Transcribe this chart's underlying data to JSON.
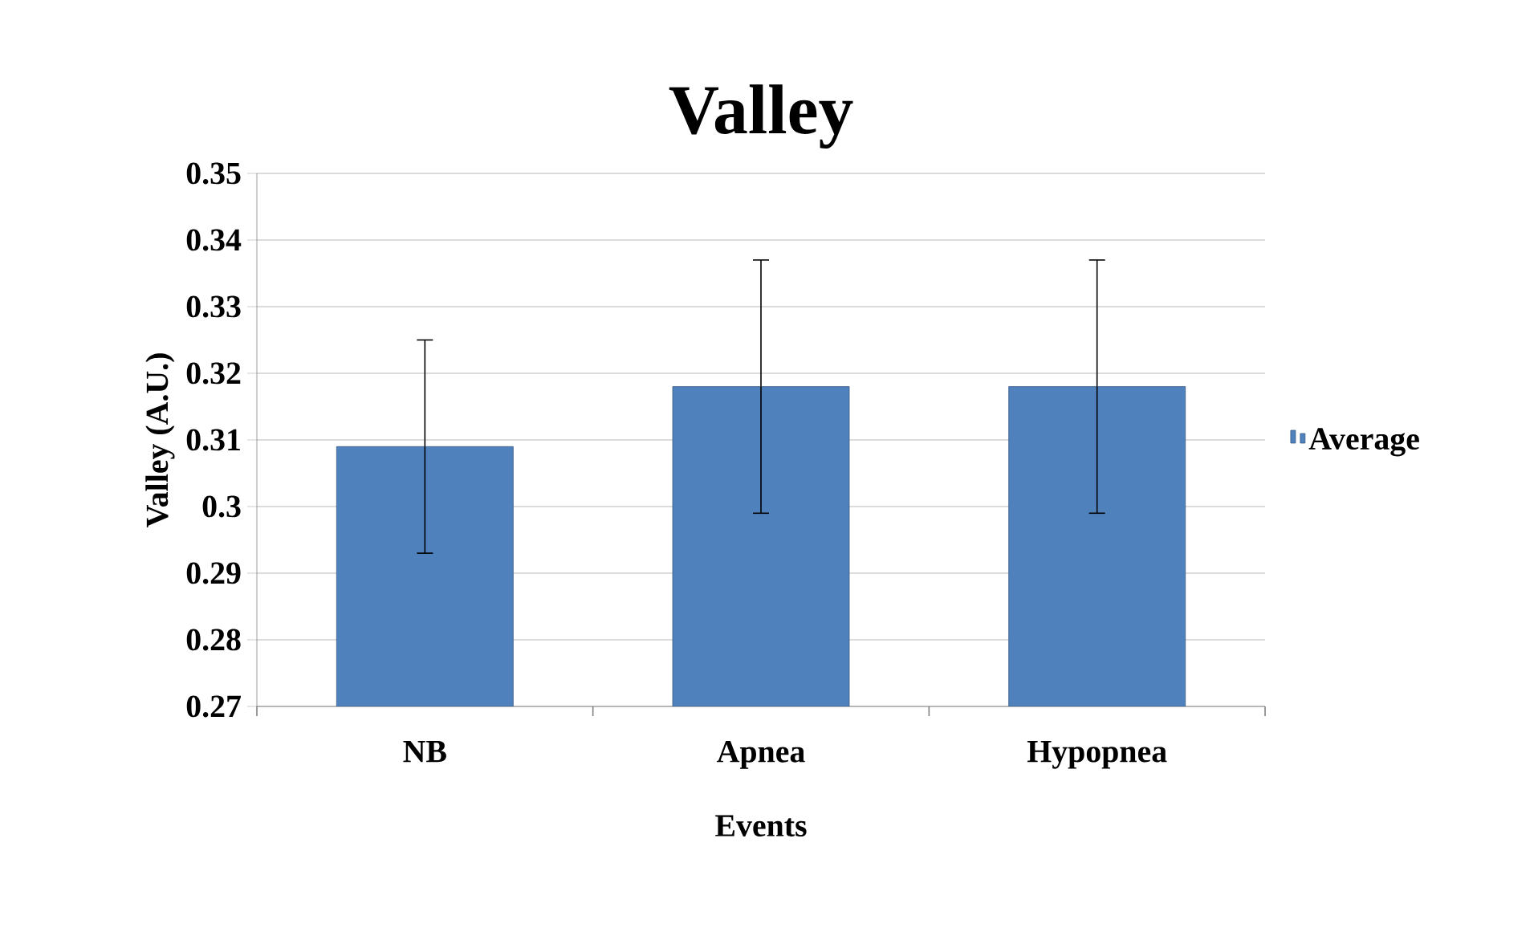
{
  "chart_data": {
    "type": "bar",
    "title": "Valley",
    "xlabel": "Events",
    "ylabel": "Valley (A.U.)",
    "categories": [
      "NB",
      "Apnea",
      "Hypopnea"
    ],
    "series": [
      {
        "name": "Average",
        "color": "#4f81bd",
        "values": [
          0.309,
          0.318,
          0.318
        ],
        "errors": [
          [
            0.293,
            0.325
          ],
          [
            0.299,
            0.337
          ],
          [
            0.299,
            0.337
          ]
        ]
      }
    ],
    "ylim": [
      0.27,
      0.35
    ],
    "yticks": [
      0.27,
      0.28,
      0.29,
      0.3,
      0.31,
      0.32,
      0.33,
      0.34,
      0.35
    ],
    "grid": "y",
    "legend": "right"
  }
}
